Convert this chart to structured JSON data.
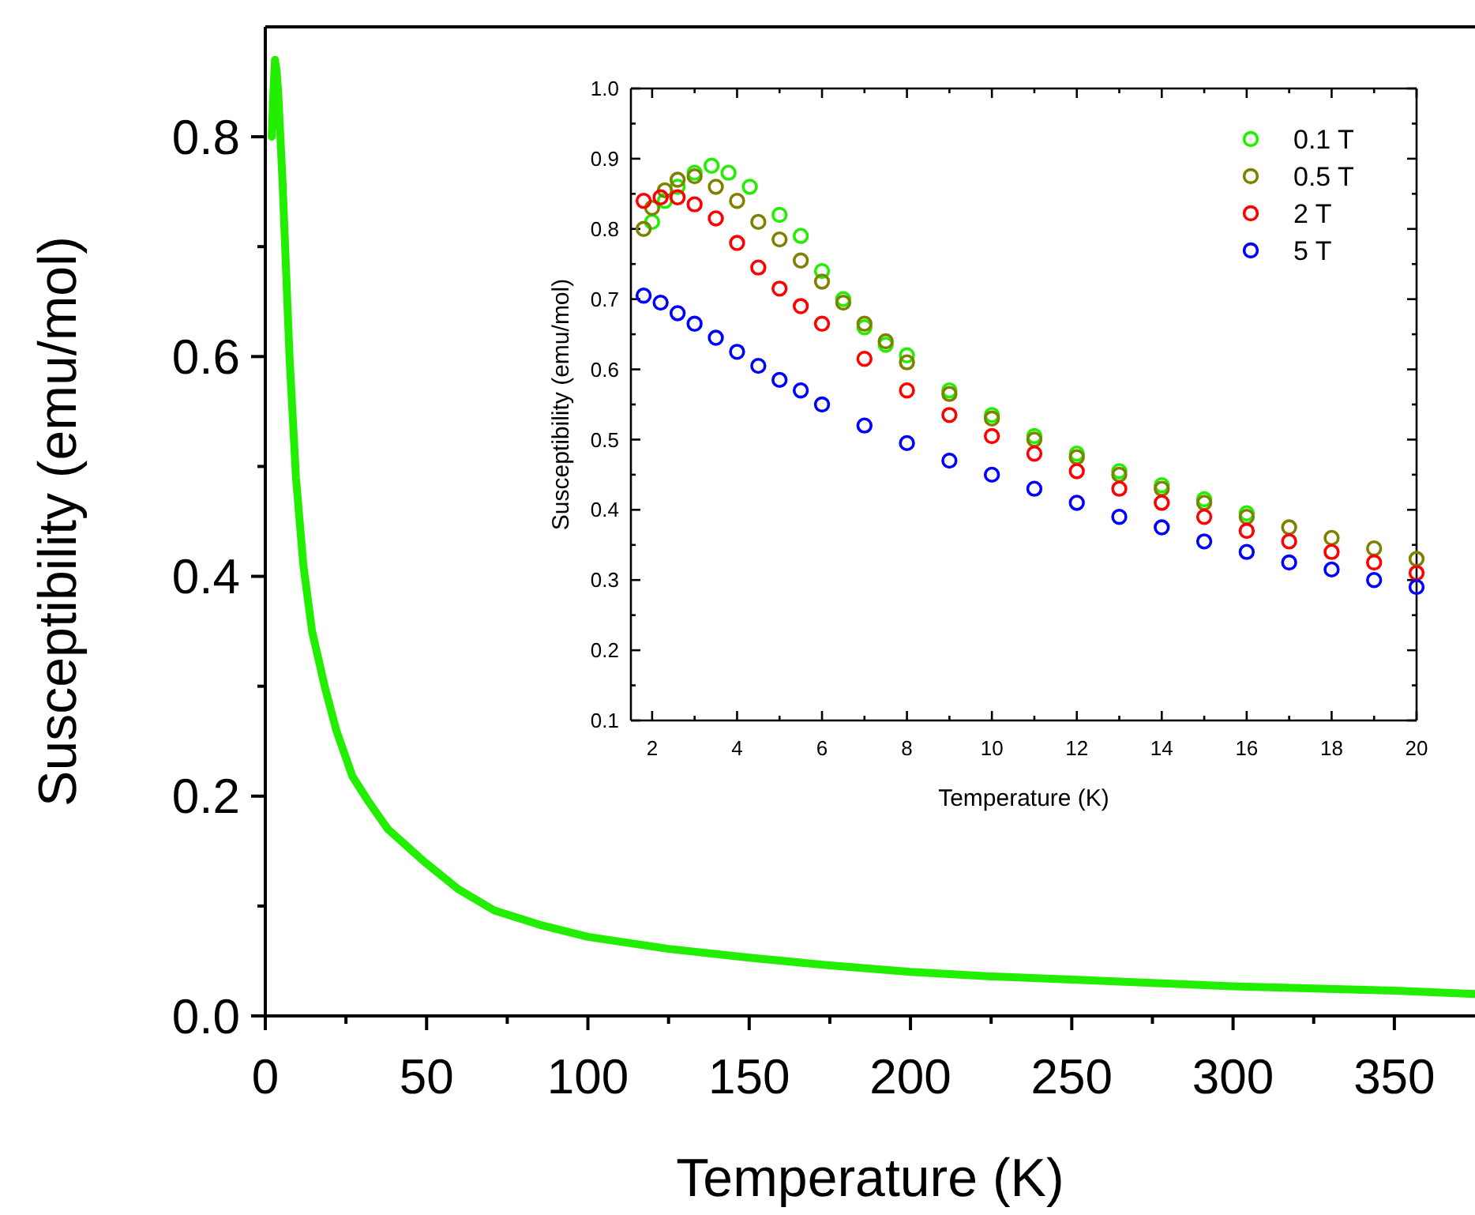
{
  "chart_data": [
    {
      "type": "line",
      "xlabel": "Temperature (K)",
      "ylabel": "Susceptibility (emu/mol)",
      "grid": false,
      "xlim": [
        0,
        375
      ],
      "ylim": [
        0,
        0.9
      ],
      "xticks": [
        0,
        {
          "value": 25,
          "label": null
        },
        50,
        {
          "value": 75,
          "label": null
        },
        100,
        {
          "value": 125,
          "label": null
        },
        150,
        {
          "value": 175,
          "label": null
        },
        200,
        {
          "value": 225,
          "label": null
        },
        250,
        {
          "value": 275,
          "label": null
        },
        300,
        {
          "value": 325,
          "label": null
        },
        350
      ],
      "yticks": [
        {
          "value": 0,
          "label": "0.0"
        },
        {
          "value": 0.1,
          "label": null
        },
        0.2,
        {
          "value": 0.3,
          "label": null
        },
        0.4,
        {
          "value": 0.5,
          "label": null
        },
        0.6,
        {
          "value": 0.7,
          "label": null
        },
        0.8
      ],
      "series": [
        {
          "color": "#22ee00",
          "x": [
            2,
            2.5,
            3,
            3.5,
            4,
            5.3,
            7.5,
            9.5,
            11.8,
            14.5,
            18.4,
            22,
            27,
            32,
            38,
            49,
            60,
            71,
            85,
            100,
            125,
            150,
            175,
            200,
            225,
            250,
            275,
            300,
            325,
            350,
            375
          ],
          "values": [
            0.8,
            0.84,
            0.87,
            0.86,
            0.84,
            0.762,
            0.6,
            0.49,
            0.41,
            0.35,
            0.3,
            0.26,
            0.218,
            0.195,
            0.17,
            0.141,
            0.115,
            0.096,
            0.083,
            0.072,
            0.061,
            0.053,
            0.046,
            0.04,
            0.036,
            0.033,
            0.03,
            0.027,
            0.025,
            0.023,
            0.02
          ]
        }
      ]
    },
    {
      "type": "scatter",
      "xlabel": "Temperature (K)",
      "ylabel": "Susceptibility (emu/mol)",
      "grid": false,
      "marker": "circle",
      "legend": "top right",
      "xlim": [
        1.5,
        20
      ],
      "ylim": [
        0.1,
        1.0
      ],
      "xticks": [
        2,
        {
          "value": 3,
          "label": null
        },
        4,
        {
          "value": 5,
          "label": null
        },
        6,
        {
          "value": 7,
          "label": null
        },
        8,
        {
          "value": 9,
          "label": null
        },
        10,
        {
          "value": 11,
          "label": null
        },
        12,
        {
          "value": 13,
          "label": null
        },
        14,
        {
          "value": 15,
          "label": null
        },
        16,
        {
          "value": 17,
          "label": null
        },
        18,
        {
          "value": 19,
          "label": null
        },
        20
      ],
      "yticks": [
        0.1,
        {
          "value": 0.15,
          "label": null
        },
        0.2,
        {
          "value": 0.25,
          "label": null
        },
        0.3,
        {
          "value": 0.35,
          "label": null
        },
        0.4,
        {
          "value": 0.45,
          "label": null
        },
        0.5,
        {
          "value": 0.55,
          "label": null
        },
        0.6,
        {
          "value": 0.65,
          "label": null
        },
        0.7,
        {
          "value": 0.75,
          "label": null
        },
        0.8,
        {
          "value": 0.85,
          "label": null
        },
        0.9,
        {
          "value": 0.95,
          "label": null
        },
        {
          "value": 1.0,
          "label": "1.0"
        }
      ],
      "series": [
        {
          "name": "0.1 T",
          "color": "#22ee00",
          "x": [
            2,
            2.3,
            2.6,
            3,
            3.4,
            3.8,
            4.3,
            5,
            5.5,
            6,
            6.5,
            7,
            7.5,
            8,
            9,
            10,
            11,
            12,
            13,
            14,
            15,
            16
          ],
          "values": [
            0.81,
            0.84,
            0.86,
            0.88,
            0.89,
            0.88,
            0.86,
            0.82,
            0.79,
            0.74,
            0.7,
            0.66,
            0.635,
            0.62,
            0.57,
            0.535,
            0.505,
            0.48,
            0.455,
            0.435,
            0.415,
            0.395
          ]
        },
        {
          "name": "0.5 T",
          "color": "#808000",
          "x": [
            1.8,
            2,
            2.3,
            2.6,
            3,
            3.5,
            4,
            4.5,
            5,
            5.5,
            6,
            6.5,
            7,
            7.5,
            8,
            9,
            10,
            11,
            12,
            13,
            14,
            15,
            16,
            17,
            18,
            19,
            20
          ],
          "values": [
            0.8,
            0.83,
            0.855,
            0.87,
            0.875,
            0.86,
            0.84,
            0.81,
            0.785,
            0.755,
            0.725,
            0.695,
            0.665,
            0.64,
            0.61,
            0.565,
            0.53,
            0.5,
            0.475,
            0.45,
            0.43,
            0.41,
            0.39,
            0.375,
            0.36,
            0.345,
            0.33
          ]
        },
        {
          "name": "2 T",
          "color": "#ff0000",
          "x": [
            1.8,
            2.2,
            2.6,
            3,
            3.5,
            4,
            4.5,
            5,
            5.5,
            6,
            7,
            8,
            9,
            10,
            11,
            12,
            13,
            14,
            15,
            16,
            17,
            18,
            19,
            20
          ],
          "values": [
            0.84,
            0.845,
            0.845,
            0.835,
            0.815,
            0.78,
            0.745,
            0.715,
            0.69,
            0.665,
            0.615,
            0.57,
            0.535,
            0.505,
            0.48,
            0.455,
            0.43,
            0.41,
            0.39,
            0.37,
            0.355,
            0.34,
            0.325,
            0.31
          ]
        },
        {
          "name": "5 T",
          "color": "#0000ff",
          "x": [
            1.8,
            2.2,
            2.6,
            3,
            3.5,
            4,
            4.5,
            5,
            5.5,
            6,
            7,
            8,
            9,
            10,
            11,
            12,
            13,
            14,
            15,
            16,
            17,
            18,
            19,
            20
          ],
          "values": [
            0.705,
            0.695,
            0.68,
            0.665,
            0.645,
            0.625,
            0.605,
            0.585,
            0.57,
            0.55,
            0.52,
            0.495,
            0.47,
            0.45,
            0.43,
            0.41,
            0.39,
            0.375,
            0.355,
            0.34,
            0.325,
            0.315,
            0.3,
            0.29
          ]
        }
      ]
    }
  ]
}
